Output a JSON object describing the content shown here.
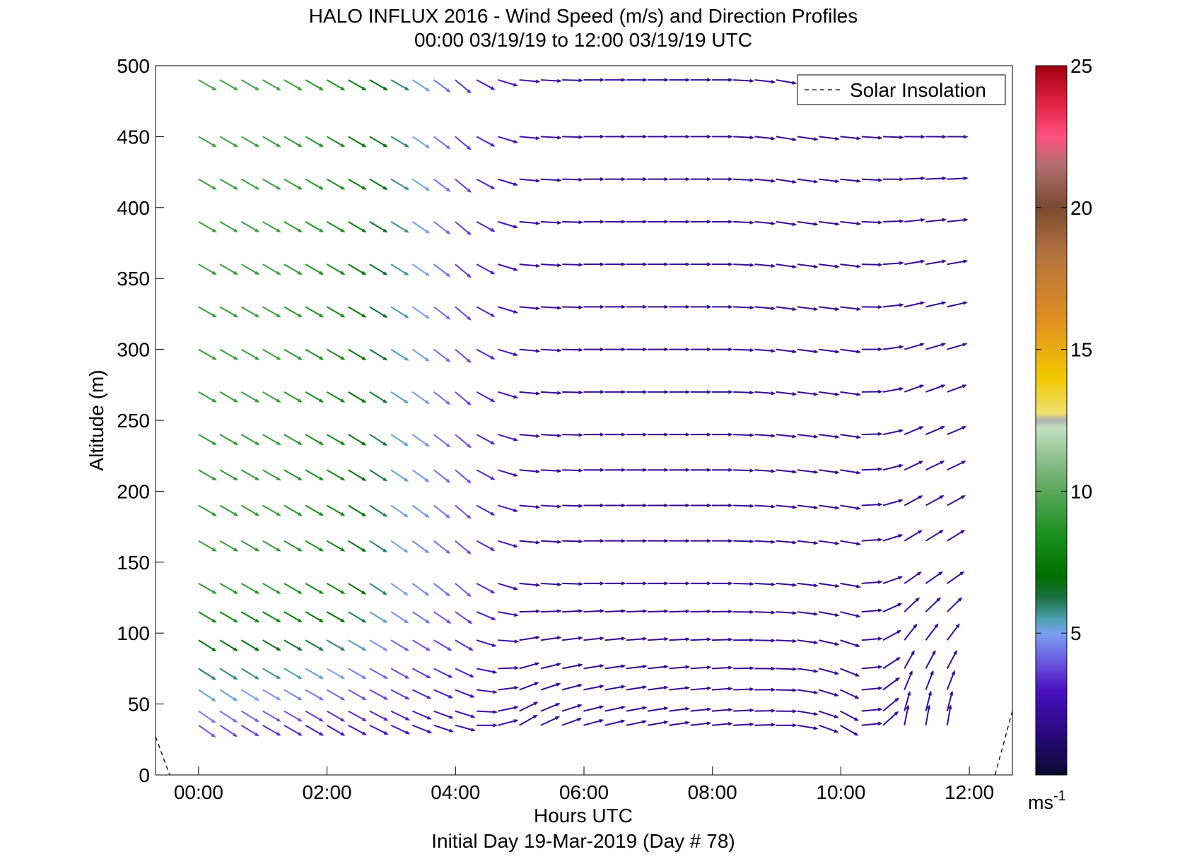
{
  "chart_data": {
    "type": "quiver",
    "title": "HALO INFLUX 2016 - Wind Speed (m/s) and Direction Profiles",
    "subtitle": "00:00 03/19/19 to 12:00 03/19/19  UTC",
    "xlabel": "Hours UTC",
    "xlabel2": "Initial Day 19-Mar-2019 (Day # 78)",
    "ylabel": "Altitude (m)",
    "xlim": [
      -0.67,
      12.67
    ],
    "ylim": [
      0,
      500
    ],
    "x_ticks": [
      0,
      2,
      4,
      6,
      8,
      10,
      12
    ],
    "x_tick_labels": [
      "00:00",
      "02:00",
      "04:00",
      "06:00",
      "08:00",
      "10:00",
      "12:00"
    ],
    "y_ticks": [
      0,
      50,
      100,
      150,
      200,
      250,
      300,
      350,
      400,
      450,
      500
    ],
    "y_tick_labels": [
      "0",
      "50",
      "100",
      "150",
      "200",
      "250",
      "300",
      "350",
      "400",
      "450",
      "500"
    ],
    "grid": false,
    "legend": {
      "position": "top-right",
      "entries": [
        "Solar Insolation"
      ]
    },
    "solar_insolation": [
      [
        -0.67,
        27
      ],
      [
        -0.45,
        0
      ],
      [
        12.4,
        0
      ],
      [
        12.67,
        45
      ]
    ],
    "colorbar": {
      "range": [
        0,
        25
      ],
      "ticks": [
        5,
        10,
        15,
        20,
        25
      ],
      "tick_labels": [
        "5",
        "10",
        "15",
        "20",
        "25"
      ],
      "unit": "ms",
      "unit_exponent": "-1"
    },
    "time_step_hours": 0.333,
    "levels_m": [
      35,
      45,
      60,
      75,
      95,
      115,
      135,
      165,
      190,
      215,
      240,
      270,
      300,
      330,
      360,
      390,
      420,
      450,
      490
    ],
    "note_units": "u/v wind components in m/s per level, times from 00:00 in steps of 20 min",
    "samples": [
      {
        "alt": 490,
        "t": [
          0,
          1,
          2,
          3,
          4,
          5,
          6,
          7,
          8,
          9,
          10,
          11
        ],
        "speed": [
          9.5,
          9.5,
          8.5,
          6,
          3.5,
          2.5,
          2,
          2,
          2,
          2,
          2,
          2
        ],
        "dir_deg": [
          300,
          300,
          300,
          300,
          310,
          275,
          270,
          270,
          270,
          280,
          275,
          275
        ]
      },
      {
        "alt": 135,
        "t": [
          0,
          1,
          2,
          3,
          4,
          5,
          6,
          7,
          8,
          9,
          10,
          11
        ],
        "speed": [
          9,
          9,
          8,
          5,
          4,
          2,
          2,
          2,
          2,
          2,
          2,
          2
        ],
        "dir_deg": [
          300,
          300,
          300,
          305,
          310,
          275,
          270,
          270,
          270,
          275,
          280,
          235
        ]
      },
      {
        "alt": 35,
        "t": [
          0,
          1,
          2,
          3,
          4,
          5,
          6,
          7,
          8,
          9,
          10,
          11
        ],
        "speed": [
          4,
          3.5,
          3,
          3,
          2.5,
          2,
          2,
          2,
          2,
          2,
          2,
          2
        ],
        "dir_deg": [
          305,
          300,
          300,
          295,
          285,
          240,
          255,
          260,
          265,
          270,
          300,
          190
        ]
      }
    ]
  }
}
